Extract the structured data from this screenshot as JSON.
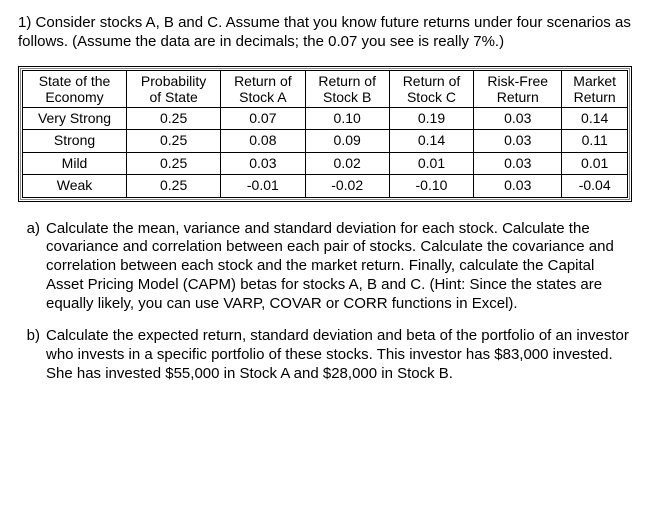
{
  "question_number": "1)",
  "intro": "Consider stocks A, B and C. Assume that you know future returns under four scenarios as follows.  (Assume the data are in decimals; the 0.07 you see is really 7%.)",
  "table": {
    "columns": [
      {
        "line1": "State of the",
        "line2": "Economy"
      },
      {
        "line1": "Probability",
        "line2": "of State"
      },
      {
        "line1": "Return of",
        "line2": "Stock A"
      },
      {
        "line1": "Return of",
        "line2": "Stock B"
      },
      {
        "line1": "Return of",
        "line2": "Stock C"
      },
      {
        "line1": "Risk-Free",
        "line2": "Return"
      },
      {
        "line1": "Market",
        "line2": "Return"
      }
    ],
    "rows": [
      [
        "Very Strong",
        "0.25",
        "0.07",
        "0.10",
        "0.19",
        "0.03",
        "0.14"
      ],
      [
        "Strong",
        "0.25",
        "0.08",
        "0.09",
        "0.14",
        "0.03",
        "0.11"
      ],
      [
        "Mild",
        "0.25",
        "0.03",
        "0.02",
        "0.01",
        "0.03",
        "0.01"
      ],
      [
        "Weak",
        "0.25",
        "-0.01",
        "-0.02",
        "-0.10",
        "0.03",
        "-0.04"
      ]
    ]
  },
  "parts": {
    "a": {
      "label": "a)",
      "text": "Calculate the mean, variance and standard deviation for each stock. Calculate the covariance and correlation between each pair of stocks. Calculate the covariance and correlation between each stock and the market return.  Finally, calculate the Capital Asset Pricing Model (CAPM) betas for stocks A, B and C. (Hint: Since the states are equally likely, you can use VARP, COVAR or CORR functions in Excel)."
    },
    "b": {
      "label": "b)",
      "text": "Calculate the expected return, standard deviation and beta of the portfolio of an investor who invests in a specific portfolio of these stocks.  This investor has $83,000 invested. She has invested $55,000 in Stock A and $28,000 in Stock B."
    }
  }
}
